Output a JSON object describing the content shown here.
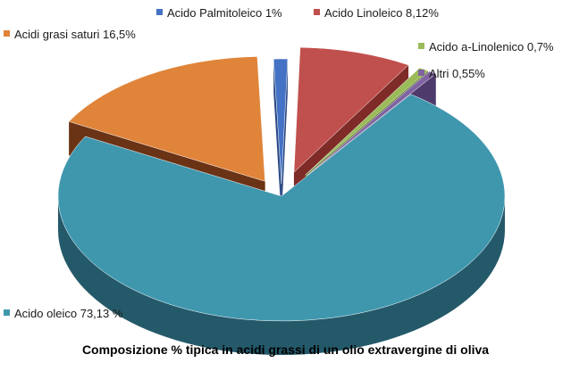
{
  "chart_data": {
    "type": "pie",
    "style": "3d-exploded",
    "title": "Composizione % tipica in acidi grassi di un olio extravergine di oliva",
    "legend": "none",
    "slices": [
      {
        "label": "Acido Palmitoleico 1%",
        "value": 1.0,
        "color": "#4472c4",
        "dark": "#2a4a86"
      },
      {
        "label": "Acido Linoleico 8,12%",
        "value": 8.12,
        "color": "#c0504d",
        "dark": "#7f2b28"
      },
      {
        "label": "Acido a-Linolenico 0,7%",
        "value": 0.7,
        "color": "#9bbb59",
        "dark": "#5f7a2b"
      },
      {
        "label": "Altri 0,55%",
        "value": 0.55,
        "color": "#8064a2",
        "dark": "#4f3a6c"
      },
      {
        "label": "Acido oleico 73,13 %",
        "value": 73.13,
        "color": "#3f97ae",
        "dark": "#24596a"
      },
      {
        "label": "Acidi grasi saturi 16,5%",
        "value": 16.5,
        "color": "#e0843a",
        "dark": "#6b3315"
      }
    ]
  }
}
